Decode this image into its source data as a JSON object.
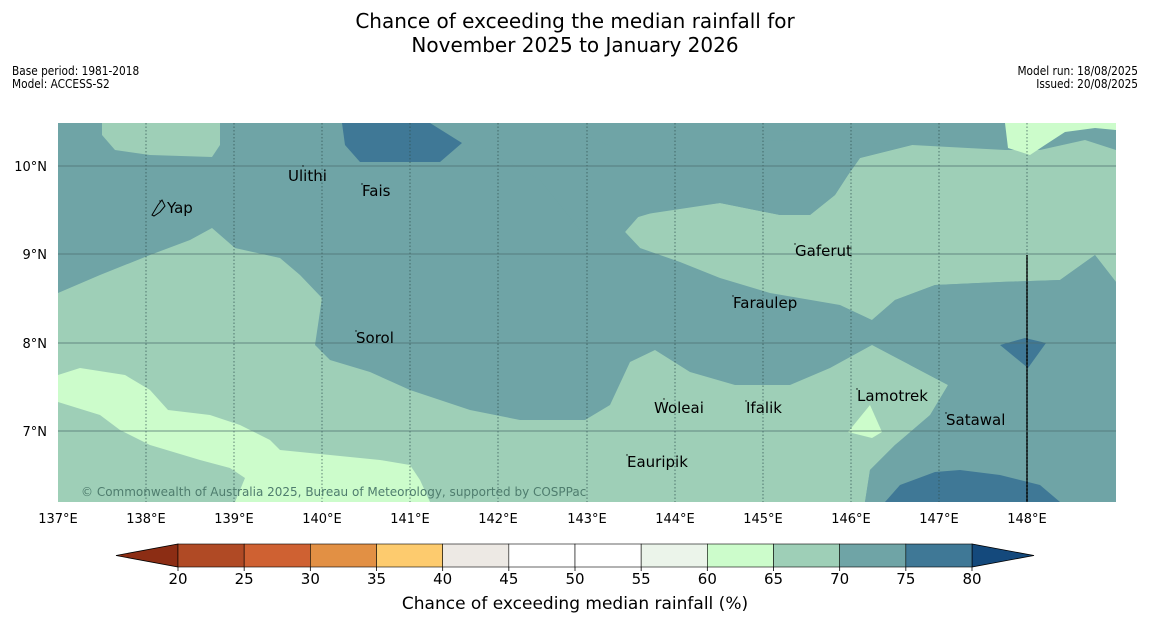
{
  "title": {
    "line1": "Chance of exceeding the median rainfall for",
    "line2": "November 2025 to January 2026"
  },
  "meta_left": {
    "base_period": "Base period: 1981-2018",
    "model": "Model: ACCESS-S2"
  },
  "meta_right": {
    "model_run": "Model run: 18/08/2025",
    "issued": "Issued: 20/08/2025"
  },
  "map": {
    "lon_labels": [
      "137°E",
      "138°E",
      "139°E",
      "140°E",
      "141°E",
      "142°E",
      "143°E",
      "144°E",
      "145°E",
      "146°E",
      "147°E",
      "148°E"
    ],
    "lat_labels": [
      "10°N",
      "9°N",
      "8°N",
      "7°N"
    ],
    "places": [
      {
        "name": "Ulithi"
      },
      {
        "name": "Fais"
      },
      {
        "name": "Yap"
      },
      {
        "name": "Gaferut"
      },
      {
        "name": "Faraulep"
      },
      {
        "name": "Sorol"
      },
      {
        "name": "Woleai"
      },
      {
        "name": "Ifalik"
      },
      {
        "name": "Lamotrek"
      },
      {
        "name": "Satawal"
      },
      {
        "name": "Eauripik"
      }
    ],
    "copyright": "© Commonwealth of Australia 2025, Bureau of Meteorology, supported by COSPPac"
  },
  "colorbar": {
    "title": "Chance of exceeding median rainfall (%)",
    "ticks": [
      "20",
      "25",
      "30",
      "35",
      "40",
      "45",
      "50",
      "55",
      "60",
      "65",
      "70",
      "75",
      "80"
    ],
    "colors": {
      "below20": "#8c2d14",
      "c20_25": "#b04a25",
      "c25_30": "#cf6132",
      "c30_35": "#e29044",
      "c35_40": "#fdcb6e",
      "c40_45": "#ede9e4",
      "c45_50": "#ffffff",
      "c50_55": "#ffffff",
      "c55_60": "#ebf4ea",
      "c60_65": "#ccfccb",
      "c65_70": "#9ecfb7",
      "c70_75": "#6fa4a6",
      "c75_80": "#3f7896",
      "above80": "#14497c"
    }
  }
}
